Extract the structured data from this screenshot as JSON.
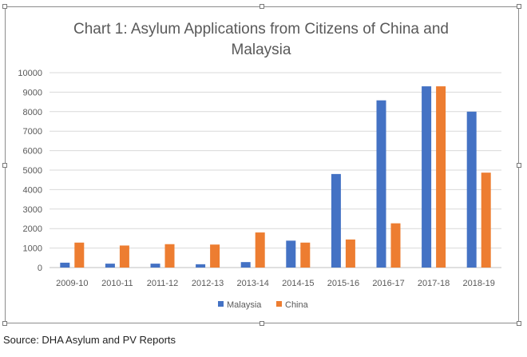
{
  "chart_data": {
    "type": "bar",
    "title_lines": [
      "Chart 1: Asylum Applications from Citizens of China and",
      "Malaysia"
    ],
    "categories": [
      "2009-10",
      "2010-11",
      "2011-12",
      "2012-13",
      "2013-14",
      "2014-15",
      "2015-16",
      "2016-17",
      "2017-18",
      "2018-19"
    ],
    "series": [
      {
        "name": "Malaysia",
        "color": "#4472C4",
        "values": [
          250,
          200,
          200,
          170,
          280,
          1380,
          4800,
          8580,
          9300,
          8000
        ]
      },
      {
        "name": "China",
        "color": "#ED7D31",
        "values": [
          1280,
          1130,
          1200,
          1180,
          1800,
          1280,
          1440,
          2270,
          9300,
          4870
        ]
      }
    ],
    "yticks": [
      0,
      1000,
      2000,
      3000,
      4000,
      5000,
      6000,
      7000,
      8000,
      9000,
      10000
    ],
    "ylim": [
      0,
      10000
    ],
    "grid": true,
    "legend_position": "bottom-center",
    "xlabel": "",
    "ylabel": ""
  },
  "source_text": "Source: DHA Asylum and PV Reports"
}
